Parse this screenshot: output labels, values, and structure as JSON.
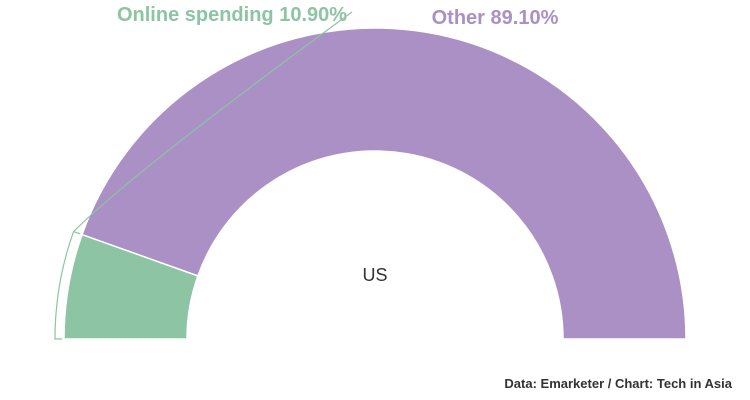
{
  "chart_data": {
    "type": "pie",
    "variant": "semi-donut",
    "center_label": "US",
    "slices": [
      {
        "label": "Online spending",
        "value": 10.9,
        "value_label": "10.90%",
        "color": "#8cc4a4"
      },
      {
        "label": "Other",
        "value": 89.1,
        "value_label": "89.10%",
        "color": "#aa90c4"
      }
    ]
  },
  "footer": {
    "source": "Data: Emarketer / Chart: Tech in Asia"
  }
}
